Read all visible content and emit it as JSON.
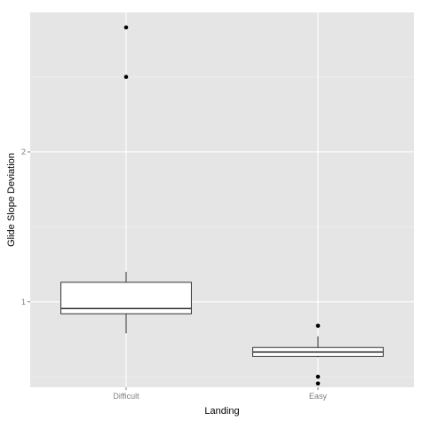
{
  "chart_data": {
    "type": "boxplot",
    "title": "",
    "xlabel": "Landing",
    "ylabel": "Glide Slope Deviation",
    "categories": [
      "Difficult",
      "Easy"
    ],
    "y_ticks": [
      {
        "value": 1,
        "label": "1"
      },
      {
        "value": 2,
        "label": "2"
      }
    ],
    "ylim": [
      0.43,
      2.93
    ],
    "grid": true,
    "boxes": [
      {
        "category": "Difficult",
        "min": 0.79,
        "q1": 0.92,
        "median": 0.955,
        "q3": 1.13,
        "max": 1.2,
        "outliers": [
          2.5,
          2.83
        ]
      },
      {
        "category": "Easy",
        "min": 0.63,
        "q1": 0.635,
        "median": 0.665,
        "q3": 0.695,
        "max": 0.77,
        "outliers": [
          0.84,
          0.5,
          0.455
        ]
      }
    ],
    "colors": {
      "panel_background": "#e5e5e5",
      "grid_major": "#ffffff",
      "grid_minor": "#f2f2f2",
      "box_fill": "#ffffff",
      "box_stroke": "#333333",
      "point": "#000000"
    }
  }
}
